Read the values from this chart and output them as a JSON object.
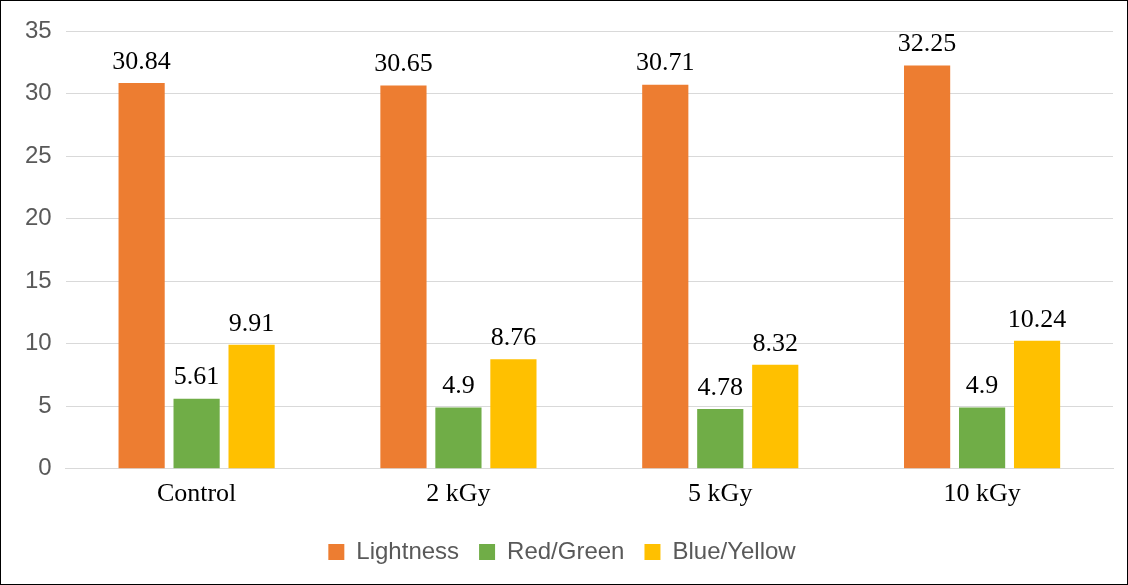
{
  "chart_data": {
    "type": "bar",
    "categories": [
      "Control",
      "2 kGy",
      "5 kGy",
      "10 kGy"
    ],
    "series": [
      {
        "name": "Lightness",
        "color": "#ed7d31",
        "values": [
          30.84,
          30.65,
          30.71,
          32.25
        ]
      },
      {
        "name": "Red/Green",
        "color": "#70ad47",
        "values": [
          5.61,
          4.9,
          4.78,
          4.9
        ]
      },
      {
        "name": "Blue/Yellow",
        "color": "#ffc000",
        "values": [
          9.91,
          8.76,
          8.32,
          10.24
        ]
      }
    ],
    "ylim": [
      0,
      35
    ],
    "yticks": [
      0,
      5,
      10,
      15,
      20,
      25,
      30,
      35
    ],
    "grid": "y",
    "legend": "bottom",
    "data_labels": true
  }
}
